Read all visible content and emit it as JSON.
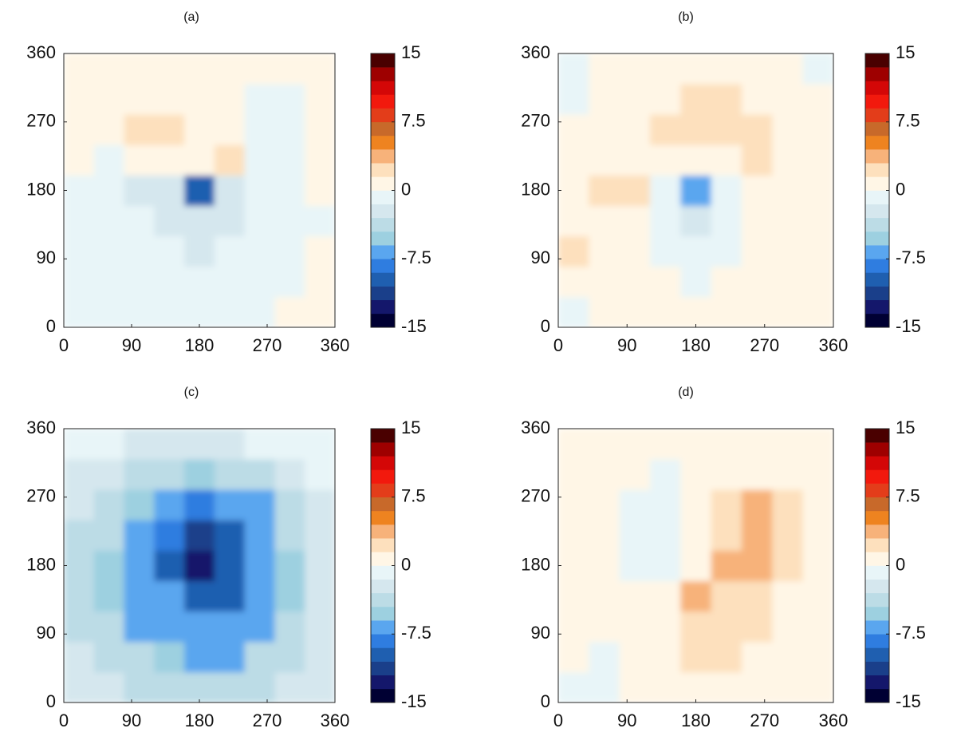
{
  "chart_data": [
    {
      "type": "contour",
      "title": "(a)",
      "xlim": [
        0,
        360
      ],
      "ylim": [
        0,
        360
      ],
      "xticks": [
        0,
        90,
        180,
        270,
        360
      ],
      "yticks": [
        0,
        90,
        180,
        270,
        360
      ],
      "x": [
        20,
        60,
        100,
        140,
        180,
        220,
        260,
        300,
        340
      ],
      "y": [
        20,
        60,
        100,
        140,
        180,
        220,
        260,
        300,
        340
      ],
      "z": [
        [
          -0.5,
          -0.5,
          -0.5,
          -0.3,
          -0.5,
          -0.5,
          -0.3,
          0.5,
          0.5
        ],
        [
          -0.5,
          -0.8,
          -0.8,
          -0.8,
          -1,
          -0.8,
          -0.5,
          -0.3,
          0.5
        ],
        [
          -0.8,
          -1,
          -1,
          -1,
          -1.5,
          -1,
          -0.8,
          -0.5,
          0.3
        ],
        [
          -0.5,
          -1,
          -1,
          -1.5,
          -2,
          -1.5,
          -1,
          -0.5,
          -0.3
        ],
        [
          -0.5,
          -1,
          -1.5,
          -2,
          -9,
          -1.5,
          -1,
          -0.5,
          0.8
        ],
        [
          0.5,
          0,
          0.5,
          1.5,
          1,
          3,
          -0.5,
          -0.5,
          0.5
        ],
        [
          0.5,
          1,
          2,
          2,
          1,
          0.5,
          -0.3,
          -0.3,
          0.3
        ],
        [
          1,
          1.5,
          1.5,
          1,
          0.5,
          0.3,
          -0.3,
          -0.3,
          0.3
        ],
        [
          1.5,
          1,
          1,
          0.5,
          0.5,
          0.3,
          0.3,
          0.5,
          0.5
        ]
      ],
      "levels": [
        -15,
        -13.5,
        -12,
        -10.5,
        -9,
        -7.5,
        -6,
        -4.5,
        -3,
        -1.5,
        0,
        1.5,
        3,
        4.5,
        6,
        7.5,
        9,
        10.5,
        12,
        13.5,
        15
      ],
      "colors": [
        "#000033",
        "#14176b",
        "#1a3f8a",
        "#1f5fb0",
        "#2f7de0",
        "#5aa6ef",
        "#9dd0e0",
        "#bcdce6",
        "#d5e7ee",
        "#e8f5f8",
        "#fff6e6",
        "#fde0bd",
        "#f7b27a",
        "#ee8320",
        "#c8692a",
        "#e33d1a",
        "#f2190d",
        "#d40707",
        "#9e0000",
        "#4a0000"
      ],
      "cticks": [
        -15,
        -7.5,
        0,
        7.5,
        15
      ]
    },
    {
      "type": "contour",
      "title": "(b)",
      "xlim": [
        0,
        360
      ],
      "ylim": [
        0,
        360
      ],
      "xticks": [
        0,
        90,
        180,
        270,
        360
      ],
      "yticks": [
        0,
        90,
        180,
        270,
        360
      ],
      "x": [
        20,
        60,
        100,
        140,
        180,
        220,
        260,
        300,
        340
      ],
      "y": [
        20,
        60,
        100,
        140,
        180,
        220,
        260,
        300,
        340
      ],
      "z": [
        [
          -0.3,
          0.5,
          0.3,
          0.3,
          0.3,
          0.3,
          0.5,
          0.5,
          0.3
        ],
        [
          1,
          1,
          0.5,
          0.3,
          -0.5,
          0.3,
          0.5,
          0.5,
          0.3
        ],
        [
          2,
          1,
          0.5,
          -0.5,
          -0.8,
          -0.5,
          0.5,
          0.5,
          0.3
        ],
        [
          1,
          1.5,
          1,
          -0.5,
          -2,
          -0.5,
          0.5,
          1,
          0.5
        ],
        [
          0.5,
          2,
          2.5,
          -0.5,
          -6,
          -0.5,
          0.5,
          1,
          0.5
        ],
        [
          0.5,
          1.5,
          1.5,
          1,
          1,
          1.5,
          2,
          1,
          0.5
        ],
        [
          0.5,
          1,
          1.5,
          2,
          3,
          2.5,
          2,
          1,
          0.5
        ],
        [
          -0.3,
          0.5,
          1,
          1.5,
          2.5,
          2,
          1,
          0.5,
          0.3
        ],
        [
          -0.3,
          0.3,
          0.5,
          0.5,
          0.5,
          0.5,
          0.5,
          0.3,
          -0.3
        ]
      ],
      "levels": [
        -15,
        -13.5,
        -12,
        -10.5,
        -9,
        -7.5,
        -6,
        -4.5,
        -3,
        -1.5,
        0,
        1.5,
        3,
        4.5,
        6,
        7.5,
        9,
        10.5,
        12,
        13.5,
        15
      ],
      "colors": [
        "#000033",
        "#14176b",
        "#1a3f8a",
        "#1f5fb0",
        "#2f7de0",
        "#5aa6ef",
        "#9dd0e0",
        "#bcdce6",
        "#d5e7ee",
        "#e8f5f8",
        "#fff6e6",
        "#fde0bd",
        "#f7b27a",
        "#ee8320",
        "#c8692a",
        "#e33d1a",
        "#f2190d",
        "#d40707",
        "#9e0000",
        "#4a0000"
      ],
      "cticks": [
        -15,
        -7.5,
        0,
        7.5,
        15
      ]
    },
    {
      "type": "contour",
      "title": "(c)",
      "xlim": [
        0,
        360
      ],
      "ylim": [
        0,
        360
      ],
      "xticks": [
        0,
        90,
        180,
        270,
        360
      ],
      "yticks": [
        0,
        90,
        180,
        270,
        360
      ],
      "x": [
        20,
        60,
        100,
        140,
        180,
        220,
        260,
        300,
        340
      ],
      "y": [
        20,
        60,
        100,
        140,
        180,
        220,
        260,
        300,
        340
      ],
      "z": [
        [
          -1.5,
          -2,
          -3,
          -3,
          -4,
          -4,
          -3,
          -2,
          -1.5
        ],
        [
          -2,
          -3,
          -4,
          -5,
          -7,
          -6,
          -4,
          -3,
          -2
        ],
        [
          -3,
          -4,
          -6,
          -7,
          -7,
          -7,
          -6,
          -4,
          -2
        ],
        [
          -3,
          -5,
          -7,
          -7,
          -9,
          -9,
          -7,
          -5,
          -2
        ],
        [
          -3,
          -5,
          -7,
          -9,
          -12,
          -9,
          -7,
          -5,
          -2
        ],
        [
          -3,
          -4,
          -6,
          -8,
          -11,
          -9,
          -7,
          -4,
          -2
        ],
        [
          -2,
          -4,
          -5,
          -7,
          -8,
          -7,
          -6,
          -3,
          -1.5
        ],
        [
          -1.5,
          -2,
          -4,
          -4,
          -5,
          -4,
          -3,
          -2,
          -1
        ],
        [
          -0.8,
          -1,
          -1.5,
          -2,
          -2,
          -1.5,
          -1,
          -0.8,
          -0.5
        ]
      ],
      "levels": [
        -15,
        -13.5,
        -12,
        -10.5,
        -9,
        -7.5,
        -6,
        -4.5,
        -3,
        -1.5,
        0,
        1.5,
        3,
        4.5,
        6,
        7.5,
        9,
        10.5,
        12,
        13.5,
        15
      ],
      "colors": [
        "#000033",
        "#14176b",
        "#1a3f8a",
        "#1f5fb0",
        "#2f7de0",
        "#5aa6ef",
        "#9dd0e0",
        "#bcdce6",
        "#d5e7ee",
        "#e8f5f8",
        "#fff6e6",
        "#fde0bd",
        "#f7b27a",
        "#ee8320",
        "#c8692a",
        "#e33d1a",
        "#f2190d",
        "#d40707",
        "#9e0000",
        "#4a0000"
      ],
      "cticks": [
        -15,
        -7.5,
        0,
        7.5,
        15
      ]
    },
    {
      "type": "contour",
      "title": "(d)",
      "xlim": [
        0,
        360
      ],
      "ylim": [
        0,
        360
      ],
      "xticks": [
        0,
        90,
        180,
        270,
        360
      ],
      "yticks": [
        0,
        90,
        180,
        270,
        360
      ],
      "x": [
        20,
        60,
        100,
        140,
        180,
        220,
        260,
        300,
        340
      ],
      "y": [
        20,
        60,
        100,
        140,
        180,
        220,
        260,
        300,
        340
      ],
      "z": [
        [
          -0.3,
          -0.3,
          0.3,
          0.5,
          1,
          1.5,
          1,
          0.5,
          0.5
        ],
        [
          0.3,
          -0.3,
          0.3,
          1,
          2,
          2,
          1.5,
          1,
          0.5
        ],
        [
          0.3,
          0.3,
          0.3,
          1,
          2,
          2.5,
          2,
          1.5,
          0.5
        ],
        [
          0.5,
          0.5,
          0.3,
          1,
          3.5,
          3,
          3,
          1.5,
          1
        ],
        [
          1,
          0.5,
          -0.5,
          -0.8,
          1.5,
          4.5,
          3.5,
          2,
          1
        ],
        [
          1,
          0.5,
          -0.5,
          -1,
          0.5,
          3,
          4.5,
          2,
          1
        ],
        [
          1.5,
          1,
          -0.3,
          -0.8,
          0.3,
          2,
          3.5,
          2,
          1
        ],
        [
          1,
          0.5,
          0.3,
          -0.3,
          0.3,
          1,
          1.5,
          1,
          0.5
        ],
        [
          1,
          1,
          0.5,
          0.5,
          0.3,
          0.5,
          0.5,
          0.5,
          0.5
        ]
      ],
      "levels": [
        -15,
        -13.5,
        -12,
        -10.5,
        -9,
        -7.5,
        -6,
        -4.5,
        -3,
        -1.5,
        0,
        1.5,
        3,
        4.5,
        6,
        7.5,
        9,
        10.5,
        12,
        13.5,
        15
      ],
      "colors": [
        "#000033",
        "#14176b",
        "#1a3f8a",
        "#1f5fb0",
        "#2f7de0",
        "#5aa6ef",
        "#9dd0e0",
        "#bcdce6",
        "#d5e7ee",
        "#e8f5f8",
        "#fff6e6",
        "#fde0bd",
        "#f7b27a",
        "#ee8320",
        "#c8692a",
        "#e33d1a",
        "#f2190d",
        "#d40707",
        "#9e0000",
        "#4a0000"
      ],
      "cticks": [
        -15,
        -7.5,
        0,
        7.5,
        15
      ]
    }
  ]
}
